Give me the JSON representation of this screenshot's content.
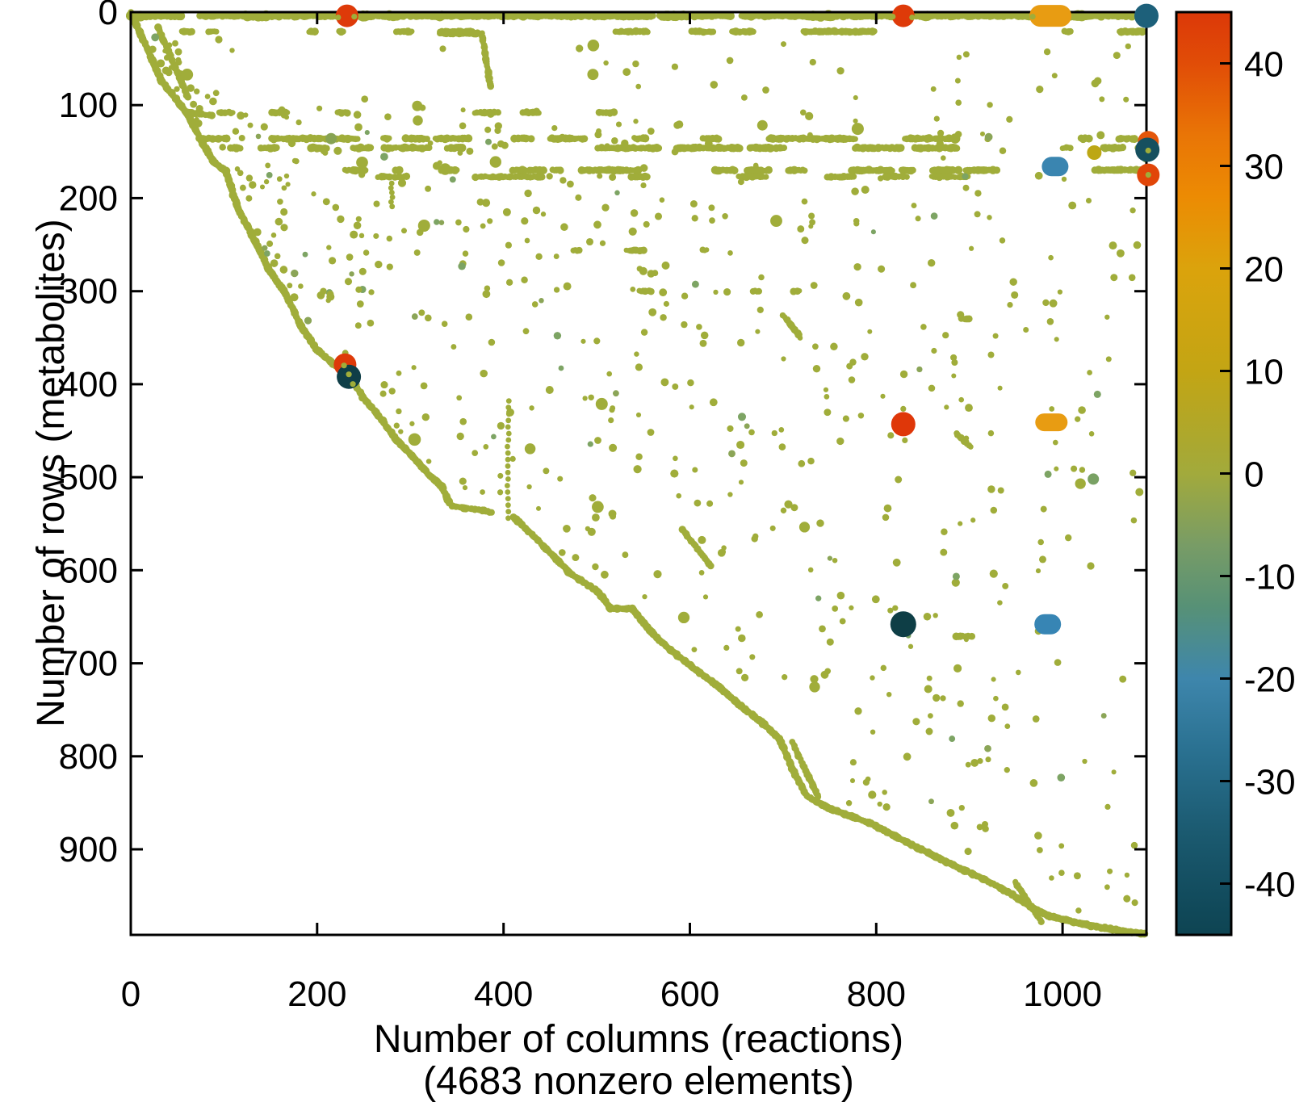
{
  "chart_data": {
    "type": "scatter",
    "subtype": "sparsity-pattern-spy-plot",
    "xlabel": "Number of columns (reactions)",
    "xlabel_note": "(4683 nonzero elements)",
    "ylabel": "Number of rows (metabolites)",
    "nonzero_elements": 4683,
    "x_ticks": [
      0,
      200,
      400,
      600,
      800,
      1000
    ],
    "y_ticks": [
      0,
      100,
      200,
      300,
      400,
      500,
      600,
      700,
      800,
      900
    ],
    "x_range": [
      0,
      1090
    ],
    "y_range": [
      0,
      992
    ],
    "y_axis_inverted": true,
    "grid": false,
    "background": "#ffffff",
    "axis_color": "#000000",
    "marker_color": "#a0ad3a",
    "marker_color_variants": [
      "#8ba557",
      "#7da464"
    ],
    "colorbar": {
      "position": "right",
      "range": [
        -45,
        45
      ],
      "ticks": [
        40,
        30,
        20,
        10,
        0,
        -10,
        -20,
        -30,
        -40
      ],
      "stops": [
        [
          45,
          "#dc3808"
        ],
        [
          40,
          "#e14d07"
        ],
        [
          33,
          "#e97506"
        ],
        [
          27,
          "#ec8b03"
        ],
        [
          20,
          "#dba30c"
        ],
        [
          10,
          "#c3a514"
        ],
        [
          3,
          "#aba82f"
        ],
        [
          0,
          "#a2aa3c"
        ],
        [
          -7,
          "#789c66"
        ],
        [
          -13,
          "#579176"
        ],
        [
          -20,
          "#3e86ac"
        ],
        [
          -27,
          "#2a7191"
        ],
        [
          -35,
          "#1b5a70"
        ],
        [
          -42,
          "#114a5b"
        ],
        [
          -45,
          "#0e4452"
        ]
      ]
    },
    "highlights": [
      {
        "col": 232,
        "row": 4,
        "value": 45,
        "color": "#de3a09",
        "shape": "circle",
        "r": 14,
        "dots": [
          [
            -11,
            2
          ],
          [
            9,
            1
          ]
        ]
      },
      {
        "col": 829,
        "row": 4,
        "value": 45,
        "color": "#de3a09",
        "shape": "circle",
        "r": 14,
        "dots": [
          [
            -13,
            1
          ],
          [
            11,
            2
          ]
        ]
      },
      {
        "col": 987,
        "row": 4,
        "value": 20,
        "color": "#e89c12",
        "shape": "capsule",
        "w": 52,
        "h": 27,
        "dots": [
          [
            -22,
            1
          ]
        ]
      },
      {
        "col": 1090,
        "row": 4,
        "value": -30,
        "color": "#1d607a",
        "shape": "circle",
        "r": 15
      },
      {
        "col": 1092,
        "row": 139,
        "value": 40,
        "color": "#e4560a",
        "shape": "circle",
        "r": 13
      },
      {
        "col": 1091,
        "row": 148,
        "value": -40,
        "color": "#16505f",
        "shape": "circle",
        "r": 15,
        "dots": [
          [
            1,
            1
          ]
        ]
      },
      {
        "col": 1092,
        "row": 175,
        "value": 43,
        "color": "#e14609",
        "shape": "circle",
        "r": 14,
        "dots": [
          [
            0,
            0
          ]
        ]
      },
      {
        "col": 992,
        "row": 166,
        "value": -20,
        "color": "#3a85b0",
        "shape": "capsule",
        "w": 33,
        "h": 24
      },
      {
        "col": 1034,
        "row": 151,
        "value": 12,
        "color": "#bda714",
        "shape": "circle",
        "r": 9
      },
      {
        "col": 215,
        "row": 136,
        "value": -5,
        "color": "#87a353",
        "shape": "circle",
        "r": 7
      },
      {
        "col": 230,
        "row": 379,
        "value": 45,
        "color": "#de3a09",
        "shape": "circle",
        "r": 14
      },
      {
        "col": 234,
        "row": 392,
        "value": -44,
        "color": "#0f3e47",
        "shape": "circle",
        "r": 15,
        "dots": [
          [
            -6,
            -14
          ],
          [
            0,
            -3
          ],
          [
            5,
            9
          ]
        ]
      },
      {
        "col": 829,
        "row": 443,
        "value": 45,
        "color": "#df3709",
        "shape": "circle",
        "r": 15,
        "dots": [
          [
            0,
            -19
          ],
          [
            2,
            20
          ]
        ]
      },
      {
        "col": 988,
        "row": 441,
        "value": 20,
        "color": "#e89c12",
        "shape": "capsule",
        "w": 40,
        "h": 22
      },
      {
        "col": 1033,
        "row": 502,
        "value": -6,
        "color": "#79a164",
        "shape": "circle",
        "r": 7
      },
      {
        "col": 829,
        "row": 658,
        "value": -44,
        "color": "#0e3e46",
        "shape": "circle",
        "r": 16,
        "dots": [
          [
            -10,
            -20
          ],
          [
            -16,
            -17
          ]
        ]
      },
      {
        "col": 984,
        "row": 658,
        "value": -20,
        "color": "#3785b4",
        "shape": "capsule",
        "w": 33,
        "h": 25
      }
    ],
    "staircase": [
      {
        "mode": "solid",
        "pts": [
          [
            0,
            0
          ],
          [
            33,
            74
          ],
          [
            62,
            111
          ],
          [
            78,
            143
          ],
          [
            89,
            161
          ],
          [
            102,
            171
          ],
          [
            115,
            211
          ],
          [
            130,
            240
          ],
          [
            148,
            276
          ],
          [
            165,
            301
          ],
          [
            182,
            336
          ],
          [
            199,
            362
          ],
          [
            217,
            378
          ],
          [
            232,
            386
          ],
          [
            249,
            414
          ],
          [
            269,
            438
          ],
          [
            286,
            461
          ],
          [
            303,
            478
          ],
          [
            320,
            497
          ],
          [
            334,
            510
          ],
          [
            342,
            528
          ]
        ]
      },
      {
        "mode": "dash",
        "pts": [
          [
            345,
            531
          ],
          [
            379,
            536
          ],
          [
            411,
            543
          ]
        ]
      },
      {
        "mode": "solid",
        "pts": [
          [
            411,
            543
          ],
          [
            431,
            562
          ],
          [
            453,
            584
          ],
          [
            470,
            602
          ],
          [
            488,
            614
          ],
          [
            501,
            623
          ],
          [
            515,
            641
          ],
          [
            538,
            641
          ],
          [
            553,
            660
          ],
          [
            567,
            675
          ],
          [
            587,
            692
          ],
          [
            609,
            709
          ],
          [
            631,
            725
          ],
          [
            652,
            744
          ],
          [
            674,
            761
          ],
          [
            696,
            781
          ],
          [
            713,
            820
          ],
          [
            726,
            843
          ],
          [
            747,
            855
          ],
          [
            774,
            865
          ],
          [
            796,
            873
          ],
          [
            830,
            891
          ],
          [
            864,
            908
          ],
          [
            895,
            923
          ],
          [
            910,
            929
          ],
          [
            934,
            942
          ],
          [
            951,
            952
          ],
          [
            968,
            963
          ],
          [
            986,
            972
          ],
          [
            1003,
            976
          ],
          [
            1029,
            982
          ],
          [
            1059,
            987
          ],
          [
            1088,
            991
          ]
        ]
      }
    ],
    "diagonals": [
      [
        29,
        16,
        61,
        91
      ],
      [
        710,
        785,
        738,
        844
      ],
      [
        949,
        935,
        977,
        978
      ],
      [
        592,
        556,
        622,
        595
      ],
      [
        886,
        453,
        901,
        467
      ],
      [
        700,
        326,
        717,
        347
      ],
      [
        377,
        24,
        386,
        80
      ],
      [
        61,
        108,
        87,
        111
      ],
      [
        332,
        23,
        377,
        23
      ],
      [
        886,
        671,
        903,
        671
      ]
    ],
    "v_runs": [
      {
        "col": 405,
        "r0": 418,
        "r1": 545,
        "step": 7
      },
      {
        "col": 280,
        "r0": 184,
        "r1": 211,
        "step": 5
      }
    ],
    "dash_rows": [
      {
        "row": 21,
        "duty": 0.55,
        "r": 4.2,
        "ranges": [
          [
            55,
            130
          ],
          [
            152,
            230
          ],
          [
            285,
            375
          ],
          [
            497,
            560
          ],
          [
            602,
            680
          ],
          [
            722,
            800
          ],
          [
            833,
            900
          ],
          [
            952,
            1010
          ],
          [
            1042,
            1088
          ]
        ]
      },
      {
        "row": 108,
        "duty": 0.3,
        "r": 4.0,
        "ranges": [
          [
            95,
            320
          ],
          [
            340,
            520
          ]
        ]
      },
      {
        "row": 136,
        "duty": 0.5,
        "r": 4.3,
        "ranges": [
          [
            60,
            430
          ],
          [
            450,
            920
          ],
          [
            1020,
            1089
          ]
        ]
      },
      {
        "row": 146,
        "duty": 0.42,
        "r": 4.3,
        "ranges": [
          [
            70,
            420
          ],
          [
            460,
            900
          ],
          [
            1000,
            1089
          ]
        ]
      },
      {
        "row": 170,
        "duty": 0.45,
        "r": 4.3,
        "ranges": [
          [
            230,
            930
          ],
          [
            1000,
            1089
          ]
        ]
      },
      {
        "row": 177,
        "duty": 0.3,
        "r": 4.0,
        "ranges": [
          [
            240,
            900
          ]
        ]
      },
      {
        "row": 256,
        "duty": 0.25,
        "r": 3.8,
        "ranges": [
          [
            475,
            640
          ],
          [
            680,
            760
          ]
        ]
      },
      {
        "row": 300,
        "duty": 0.15,
        "r": 3.8,
        "ranges": [
          [
            520,
            830
          ]
        ]
      },
      {
        "row": 330,
        "duty": 0.2,
        "r": 3.8,
        "ranges": [
          [
            640,
            900
          ]
        ]
      }
    ],
    "top_row": {
      "row": 4,
      "c0": 0,
      "c1": 1089
    },
    "scatter_seed": 20240917,
    "scatter_count": 640
  }
}
